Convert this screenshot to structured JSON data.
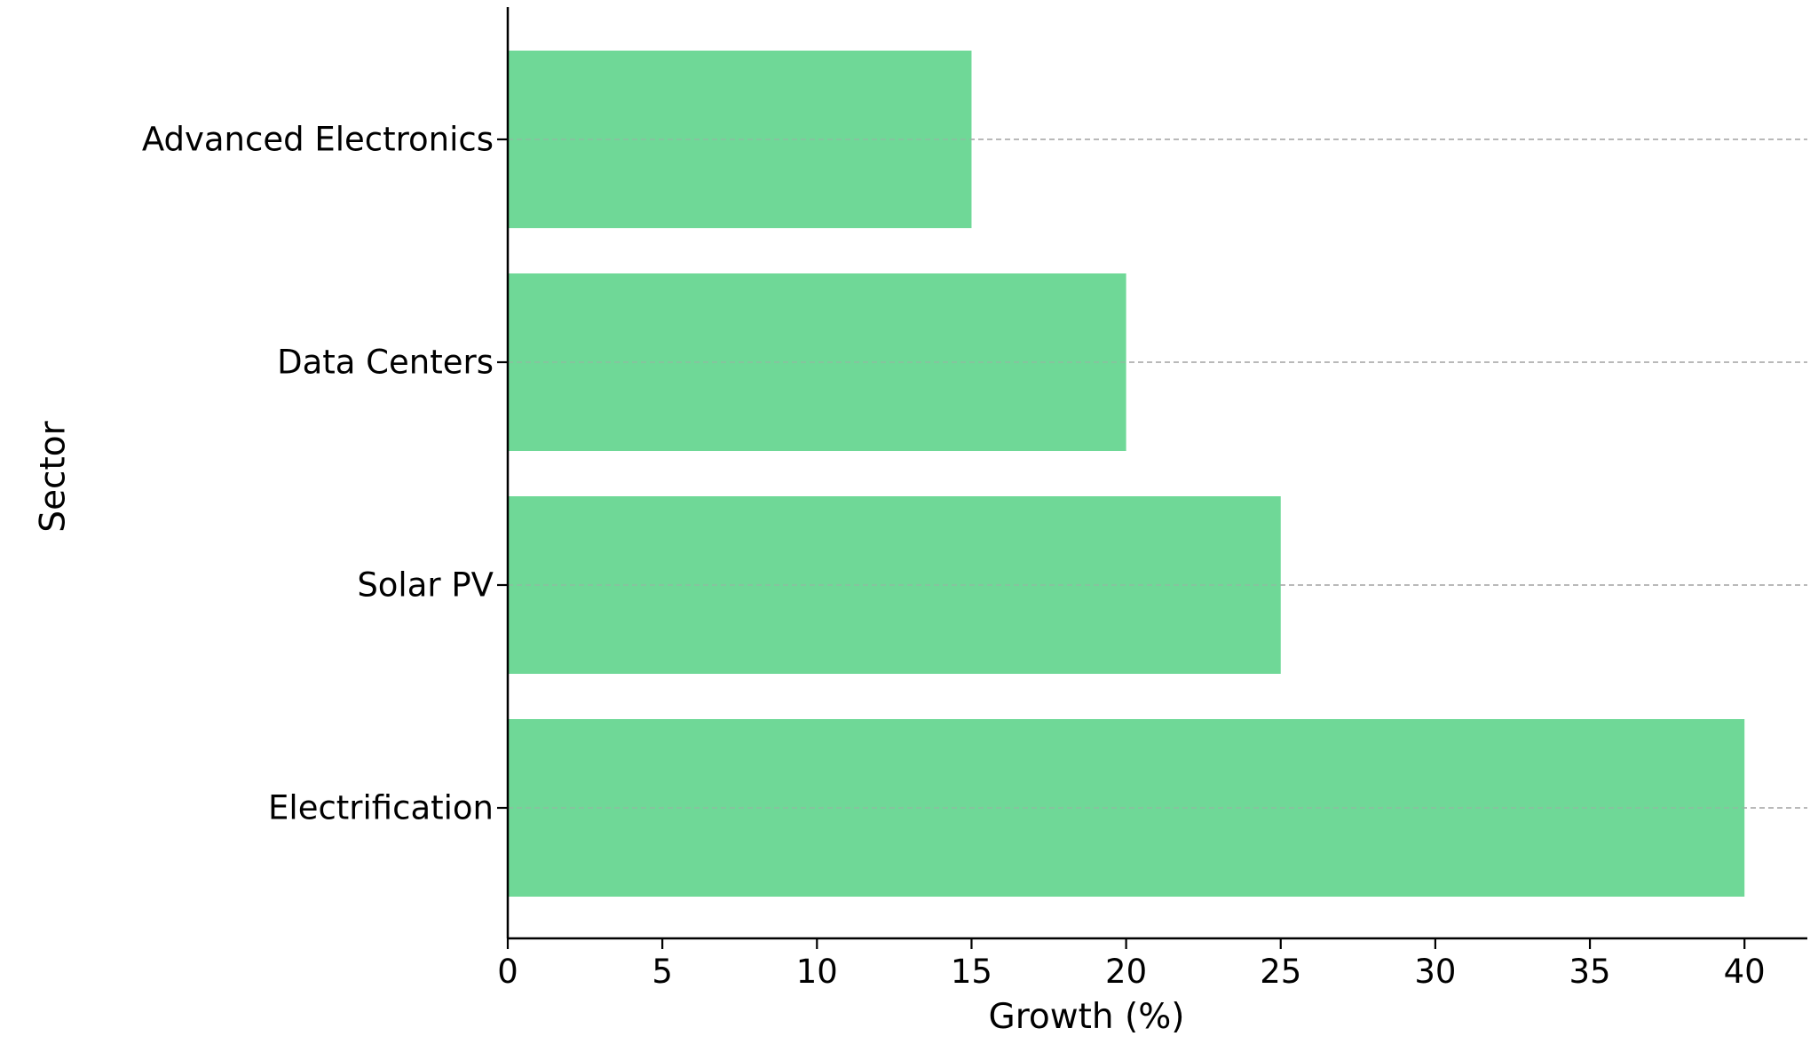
{
  "chart_data": {
    "type": "bar",
    "orientation": "horizontal",
    "categories": [
      "Advanced Electronics",
      "Data Centers",
      "Solar PV",
      "Electrification"
    ],
    "values": [
      15,
      20,
      25,
      40
    ],
    "title": "",
    "xlabel": "Growth (%)",
    "ylabel": "Sector",
    "xlim": [
      0,
      42
    ],
    "xticks": [
      0,
      5,
      10,
      15,
      20,
      25,
      30,
      35,
      40
    ],
    "grid": "dashed horizontal lines at each category",
    "bar_color": "#6fd897",
    "grid_color": "#aaaaaa",
    "axis_color": "#000000"
  }
}
